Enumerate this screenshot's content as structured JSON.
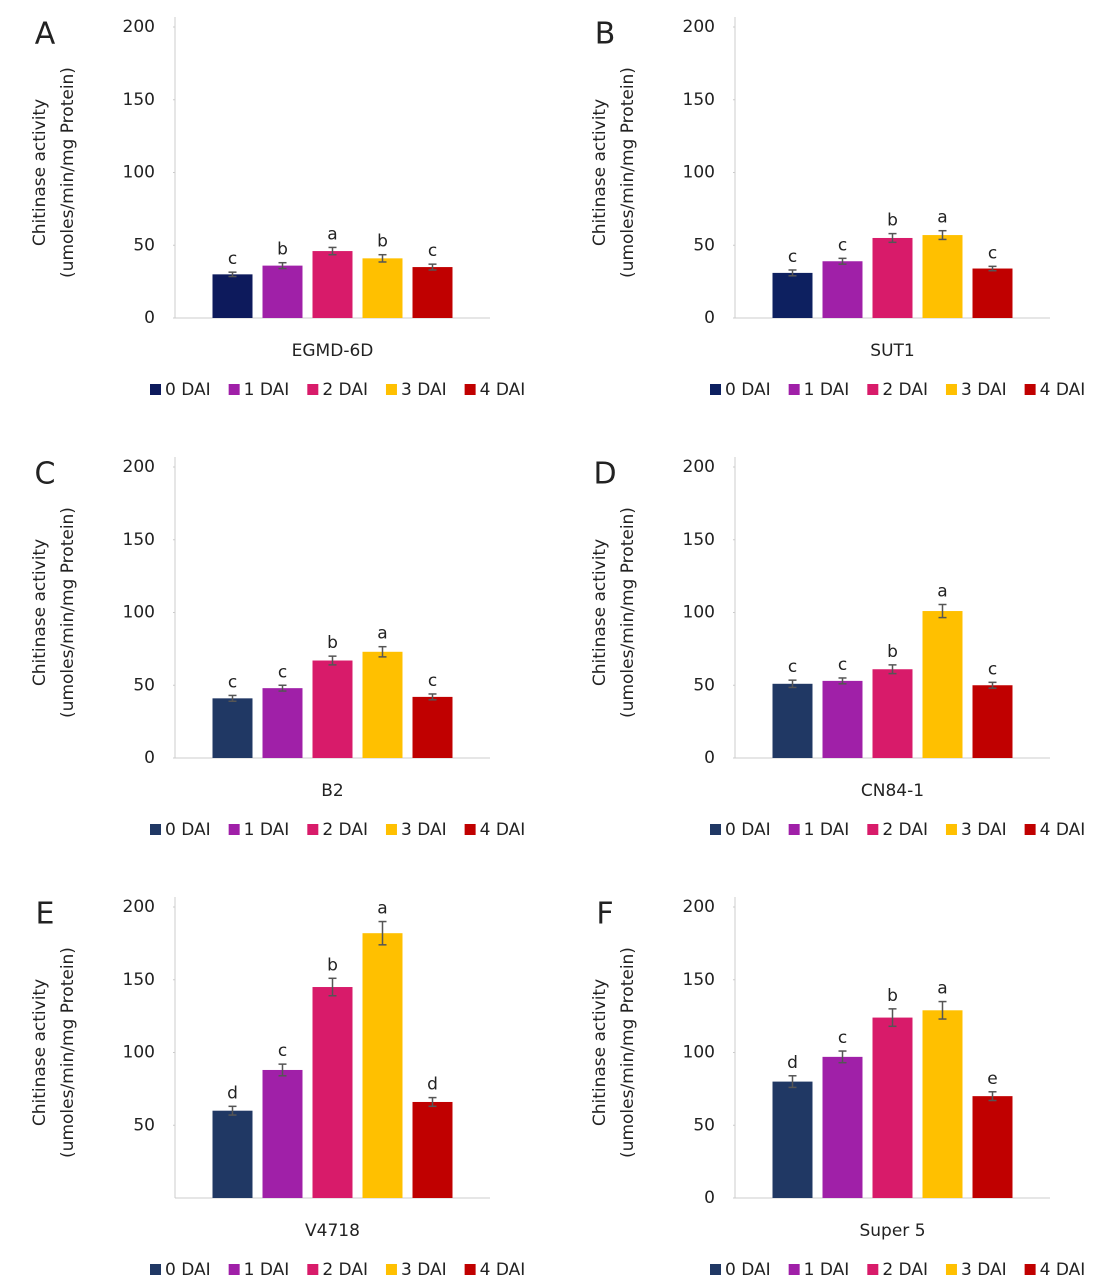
{
  "chart_data": [
    {
      "type": "bar",
      "panel": "A",
      "y_label": [
        "Chitinase activity",
        "(umoles/min/mg Protein)"
      ],
      "categories": [
        "EGMD-6D"
      ],
      "ylim": [
        0,
        200
      ],
      "yticks": [
        0,
        50,
        100,
        150,
        200
      ],
      "series": [
        {
          "name": "0 DAI",
          "color": "#0d1a5c",
          "values": [
            30
          ],
          "errors": [
            1.5
          ],
          "letters": [
            "c"
          ]
        },
        {
          "name": "1 DAI",
          "color": "#a020a8",
          "values": [
            36
          ],
          "errors": [
            2
          ],
          "letters": [
            "b"
          ]
        },
        {
          "name": "2 DAI",
          "color": "#d81b6a",
          "values": [
            46
          ],
          "errors": [
            2.5
          ],
          "letters": [
            "a"
          ]
        },
        {
          "name": "3 DAI",
          "color": "#ffc000",
          "values": [
            41
          ],
          "errors": [
            2.5
          ],
          "letters": [
            "b"
          ]
        },
        {
          "name": "4 DAI",
          "color": "#c00000",
          "values": [
            35
          ],
          "errors": [
            2
          ],
          "letters": [
            "c"
          ]
        }
      ]
    },
    {
      "type": "bar",
      "panel": "B",
      "y_label": [
        "Chitinase activity",
        "(umoles/min/mg Protein)"
      ],
      "categories": [
        "SUT1"
      ],
      "ylim": [
        0,
        200
      ],
      "yticks": [
        0,
        50,
        100,
        150,
        200
      ],
      "series": [
        {
          "name": "0 DAI",
          "color": "#0d2060",
          "values": [
            31
          ],
          "errors": [
            2
          ],
          "letters": [
            "c"
          ]
        },
        {
          "name": "1 DAI",
          "color": "#a020a8",
          "values": [
            39
          ],
          "errors": [
            2
          ],
          "letters": [
            "c"
          ]
        },
        {
          "name": "2 DAI",
          "color": "#d81b6a",
          "values": [
            55
          ],
          "errors": [
            3
          ],
          "letters": [
            "b"
          ]
        },
        {
          "name": "3 DAI",
          "color": "#ffc000",
          "values": [
            57
          ],
          "errors": [
            3
          ],
          "letters": [
            "a"
          ]
        },
        {
          "name": "4 DAI",
          "color": "#c00000",
          "values": [
            34
          ],
          "errors": [
            1.5
          ],
          "letters": [
            "c"
          ]
        }
      ]
    },
    {
      "type": "bar",
      "panel": "C",
      "y_label": [
        "Chitinase activity",
        "(umoles/min/mg Protein)"
      ],
      "categories": [
        "B2"
      ],
      "ylim": [
        0,
        200
      ],
      "yticks": [
        0,
        50,
        100,
        150,
        200
      ],
      "series": [
        {
          "name": "0 DAI",
          "color": "#203864",
          "values": [
            41
          ],
          "errors": [
            2
          ],
          "letters": [
            "c"
          ]
        },
        {
          "name": "1 DAI",
          "color": "#a020a8",
          "values": [
            48
          ],
          "errors": [
            2
          ],
          "letters": [
            "c"
          ]
        },
        {
          "name": "2 DAI",
          "color": "#d81b6a",
          "values": [
            67
          ],
          "errors": [
            3
          ],
          "letters": [
            "b"
          ]
        },
        {
          "name": "3 DAI",
          "color": "#ffc000",
          "values": [
            73
          ],
          "errors": [
            3.5
          ],
          "letters": [
            "a"
          ]
        },
        {
          "name": "4 DAI",
          "color": "#c00000",
          "values": [
            42
          ],
          "errors": [
            2
          ],
          "letters": [
            "c"
          ]
        }
      ]
    },
    {
      "type": "bar",
      "panel": "D",
      "y_label": [
        "Chitinase activity",
        "(umoles/min/mg Protein)"
      ],
      "categories": [
        "CN84-1"
      ],
      "ylim": [
        0,
        200
      ],
      "yticks": [
        0,
        50,
        100,
        150,
        200
      ],
      "series": [
        {
          "name": "0 DAI",
          "color": "#203864",
          "values": [
            51
          ],
          "errors": [
            2.5
          ],
          "letters": [
            "c"
          ]
        },
        {
          "name": "1 DAI",
          "color": "#a020a8",
          "values": [
            53
          ],
          "errors": [
            2
          ],
          "letters": [
            "c"
          ]
        },
        {
          "name": "2 DAI",
          "color": "#d81b6a",
          "values": [
            61
          ],
          "errors": [
            3
          ],
          "letters": [
            "b"
          ]
        },
        {
          "name": "3 DAI",
          "color": "#ffc000",
          "values": [
            101
          ],
          "errors": [
            4.5
          ],
          "letters": [
            "a"
          ]
        },
        {
          "name": "4 DAI",
          "color": "#c00000",
          "values": [
            50
          ],
          "errors": [
            2
          ],
          "letters": [
            "c"
          ]
        }
      ]
    },
    {
      "type": "bar",
      "panel": "E",
      "y_label": [
        "Chitinase activity",
        "(umoles/min/mg Protein)"
      ],
      "categories": [
        "V4718"
      ],
      "ylim": [
        0,
        200
      ],
      "yticks": [
        50,
        100,
        150,
        200
      ],
      "series": [
        {
          "name": "0 DAI",
          "color": "#203864",
          "values": [
            60
          ],
          "errors": [
            3
          ],
          "letters": [
            "d"
          ]
        },
        {
          "name": "1 DAI",
          "color": "#a020a8",
          "values": [
            88
          ],
          "errors": [
            4
          ],
          "letters": [
            "c"
          ]
        },
        {
          "name": "2 DAI",
          "color": "#d81b6a",
          "values": [
            145
          ],
          "errors": [
            6
          ],
          "letters": [
            "b"
          ]
        },
        {
          "name": "3 DAI",
          "color": "#ffc000",
          "values": [
            182
          ],
          "errors": [
            8
          ],
          "letters": [
            "a"
          ]
        },
        {
          "name": "4 DAI",
          "color": "#c00000",
          "values": [
            66
          ],
          "errors": [
            3
          ],
          "letters": [
            "d"
          ]
        }
      ]
    },
    {
      "type": "bar",
      "panel": "F",
      "y_label": [
        "Chitinase activity",
        "(umoles/min/mg Protein)"
      ],
      "categories": [
        "Super 5"
      ],
      "ylim": [
        0,
        200
      ],
      "yticks": [
        0,
        50,
        100,
        150,
        200
      ],
      "series": [
        {
          "name": "0 DAI",
          "color": "#203864",
          "values": [
            80
          ],
          "errors": [
            4
          ],
          "letters": [
            "d"
          ]
        },
        {
          "name": "1 DAI",
          "color": "#a020a8",
          "values": [
            97
          ],
          "errors": [
            4
          ],
          "letters": [
            "c"
          ]
        },
        {
          "name": "2 DAI",
          "color": "#d81b6a",
          "values": [
            124
          ],
          "errors": [
            6
          ],
          "letters": [
            "b"
          ]
        },
        {
          "name": "3 DAI",
          "color": "#ffc000",
          "values": [
            129
          ],
          "errors": [
            6
          ],
          "letters": [
            "a"
          ]
        },
        {
          "name": "4 DAI",
          "color": "#c00000",
          "values": [
            70
          ],
          "errors": [
            3
          ],
          "letters": [
            "e"
          ]
        }
      ]
    }
  ]
}
